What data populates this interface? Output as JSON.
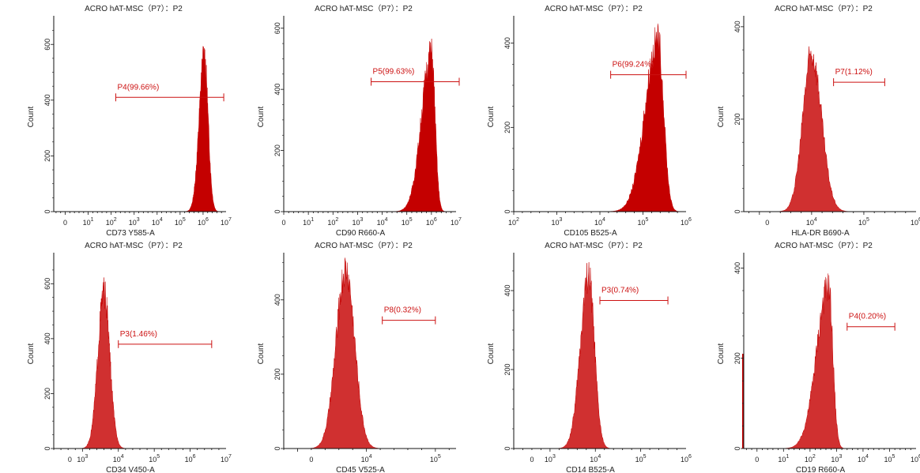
{
  "colors": {
    "fill": "#c40000",
    "fill_light": "#d03030",
    "gate": "#cc1111",
    "axis": "#111111"
  },
  "chart_data": [
    {
      "type": "area",
      "title": "ACRO  hAT-MSC（P7）：P2",
      "xlabel": "CD73 Y585-A",
      "ylabel": "Count",
      "x_ticks": [
        {
          "label": "0"
        },
        {
          "base": "10",
          "exp": "1"
        },
        {
          "base": "10",
          "exp": "2"
        },
        {
          "base": "10",
          "exp": "3"
        },
        {
          "base": "10",
          "exp": "4"
        },
        {
          "base": "10",
          "exp": "5"
        },
        {
          "base": "10",
          "exp": "6"
        },
        {
          "base": "10",
          "exp": "7"
        }
      ],
      "y_ticks": [
        "0",
        "200",
        "400",
        "600"
      ],
      "ylim": [
        0,
        680
      ],
      "peak": {
        "center": 6.05,
        "left_width": 0.22,
        "right_width": 0.17,
        "height": 560
      },
      "gate": {
        "label": "P4(99.66%)",
        "from": 2.2,
        "to": 6.9,
        "y": 410
      }
    },
    {
      "type": "area",
      "title": "ACRO  hAT-MSC（P7）：P2",
      "xlabel": "CD90 R660-A",
      "ylabel": "Count",
      "x_ticks": [
        {
          "label": "0"
        },
        {
          "base": "10",
          "exp": "1"
        },
        {
          "base": "10",
          "exp": "2"
        },
        {
          "base": "10",
          "exp": "3"
        },
        {
          "base": "10",
          "exp": "4"
        },
        {
          "base": "10",
          "exp": "5"
        },
        {
          "base": "10",
          "exp": "6"
        },
        {
          "base": "10",
          "exp": "7"
        }
      ],
      "y_ticks": [
        "0",
        "200",
        "400",
        "600"
      ],
      "ylim": [
        0,
        620
      ],
      "peak": {
        "center": 6.0,
        "left_width": 0.4,
        "right_width": 0.15,
        "height": 520
      },
      "gate": {
        "label": "P5(99.63%)",
        "from": 3.55,
        "to": 7.8,
        "y": 425
      }
    },
    {
      "type": "area",
      "title": "ACRO  hAT-MSC（P7）：P2",
      "xlabel": "CD105 B525-A",
      "ylabel": "Count",
      "x_ticks": [
        {
          "base": "10",
          "exp": "2"
        },
        {
          "base": "10",
          "exp": "3"
        },
        {
          "base": "10",
          "exp": "4"
        },
        {
          "base": "10",
          "exp": "5"
        },
        {
          "base": "10",
          "exp": "6"
        }
      ],
      "y_ticks": [
        "0",
        "200",
        "400"
      ],
      "ylim": [
        0,
        450
      ],
      "peak": {
        "center": 5.35,
        "left_width": 0.3,
        "right_width": 0.13,
        "height": 410
      },
      "gate": {
        "label": "P6(99.24%)",
        "from": 4.25,
        "to": 6.0,
        "y": 325
      }
    },
    {
      "type": "area",
      "title": "ACRO  hAT-MSC（P7）：P2",
      "xlabel": "HLA-DR B690-A",
      "ylabel": "Count",
      "x_ticks": [
        {
          "label": "0"
        },
        {
          "base": "10",
          "exp": "4"
        },
        {
          "base": "10",
          "exp": "5"
        },
        {
          "base": "10",
          "exp": "6"
        }
      ],
      "y_ticks": [
        "0",
        "200",
        "400"
      ],
      "ylim": [
        0,
        410
      ],
      "peak": {
        "center": 4.0,
        "left_width": 0.17,
        "right_width": 0.19,
        "height": 340
      },
      "gate": {
        "label": "P7(1.12%)",
        "from": 4.42,
        "to": 5.4,
        "y": 280
      }
    },
    {
      "type": "area",
      "title": "ACRO  hAT-MSC（P7）：P2",
      "xlabel": "CD34 V450-A",
      "ylabel": "Count",
      "x_ticks": [
        {
          "label": "0"
        },
        {
          "base": "10",
          "exp": "3"
        },
        {
          "base": "10",
          "exp": "4"
        },
        {
          "base": "10",
          "exp": "5"
        },
        {
          "base": "10",
          "exp": "6"
        },
        {
          "base": "10",
          "exp": "7"
        }
      ],
      "y_ticks": [
        "0",
        "200",
        "400",
        "600"
      ],
      "ylim": [
        0,
        690
      ],
      "peak": {
        "center": 3.6,
        "left_width": 0.17,
        "right_width": 0.16,
        "height": 570
      },
      "gate": {
        "label": "P3(1.46%)",
        "from": 4.0,
        "to": 6.6,
        "y": 380
      }
    },
    {
      "type": "area",
      "title": "ACRO  hAT-MSC（P7）：P2",
      "xlabel": "CD45 V525-A",
      "ylabel": "Count",
      "x_ticks": [
        {
          "label": "0"
        },
        {
          "base": "10",
          "exp": "4"
        },
        {
          "base": "10",
          "exp": "5"
        }
      ],
      "y_ticks": [
        "0",
        "200",
        "400"
      ],
      "ylim": [
        0,
        510
      ],
      "peak": {
        "center": 3.7,
        "left_width": 0.14,
        "right_width": 0.13,
        "height": 480
      },
      "gate": {
        "label": "P8(0.32%)",
        "from": 4.23,
        "to": 5.0,
        "y": 345
      }
    },
    {
      "type": "area",
      "title": "ACRO  hAT-MSC（P7）：P2",
      "xlabel": "CD14 B525-A",
      "ylabel": "Count",
      "x_ticks": [
        {
          "label": "0"
        },
        {
          "base": "10",
          "exp": "3"
        },
        {
          "base": "10",
          "exp": "4"
        },
        {
          "base": "10",
          "exp": "5"
        },
        {
          "base": "10",
          "exp": "6"
        }
      ],
      "y_ticks": [
        "0",
        "200",
        "400"
      ],
      "ylim": [
        0,
        480
      ],
      "peak": {
        "center": 3.85,
        "left_width": 0.18,
        "right_width": 0.13,
        "height": 440
      },
      "gate": {
        "label": "P3(0.74%)",
        "from": 4.1,
        "to": 5.6,
        "y": 375
      }
    },
    {
      "type": "area",
      "title": "ACRO  hAT-MSC（P7）：P2",
      "xlabel": "CD19 R660-A",
      "ylabel": "Count",
      "x_ticks": [
        {
          "label": "0"
        },
        {
          "base": "10",
          "exp": "1"
        },
        {
          "base": "10",
          "exp": "2"
        },
        {
          "base": "10",
          "exp": "3"
        },
        {
          "base": "10",
          "exp": "4"
        },
        {
          "base": "10",
          "exp": "5"
        },
        {
          "base": "10",
          "exp": "6"
        }
      ],
      "y_ticks": [
        "0",
        "200",
        "400"
      ],
      "ylim": [
        0,
        420
      ],
      "peak": {
        "center": 2.7,
        "left_width": 0.45,
        "right_width": 0.16,
        "height": 360
      },
      "gate": {
        "label": "P4(0.20%)",
        "from": 3.4,
        "to": 5.2,
        "y": 270
      }
    }
  ]
}
